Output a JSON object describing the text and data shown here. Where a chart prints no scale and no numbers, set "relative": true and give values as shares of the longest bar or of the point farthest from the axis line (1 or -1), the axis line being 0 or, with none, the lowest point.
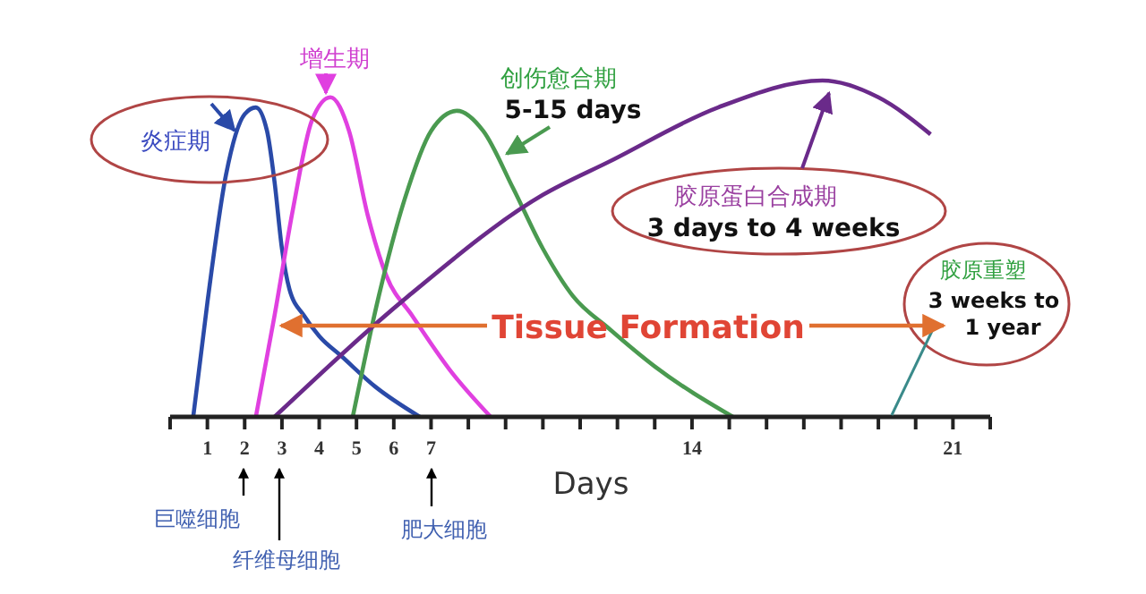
{
  "chart_data": {
    "type": "line",
    "relative": true,
    "xlabel": "Days",
    "xlim": [
      0,
      22
    ],
    "xticks": [
      {
        "value": 0,
        "label": null
      },
      1,
      2,
      3,
      4,
      5,
      6,
      7,
      {
        "value": 8,
        "label": null
      },
      {
        "value": 9,
        "label": null
      },
      {
        "value": 10,
        "label": null
      },
      {
        "value": 11,
        "label": null
      },
      {
        "value": 12,
        "label": null
      },
      {
        "value": 13,
        "label": null
      },
      14,
      {
        "value": 15,
        "label": null
      },
      {
        "value": 16,
        "label": null
      },
      {
        "value": 17,
        "label": null
      },
      {
        "value": 18,
        "label": null
      },
      {
        "value": 19,
        "label": null
      },
      {
        "value": 20,
        "label": null
      },
      21,
      {
        "value": 22,
        "label": null
      }
    ],
    "series": [
      {
        "name": "炎症期",
        "color": "#2a4aa8",
        "x": [
          0.62,
          1.0,
          1.5,
          2.0,
          2.3,
          2.6,
          2.8,
          3.0,
          3.2,
          3.6,
          4.0,
          4.6,
          5.5,
          6.7
        ],
        "values": [
          0,
          0.34,
          0.72,
          0.9,
          0.92,
          0.85,
          0.7,
          0.5,
          0.38,
          0.3,
          0.24,
          0.18,
          0.09,
          0
        ]
      },
      {
        "name": "增生期",
        "color": "#e040e0",
        "x": [
          2.3,
          2.8,
          3.3,
          3.8,
          4.3,
          4.8,
          5.3,
          5.8,
          6.5,
          7.5,
          8.6
        ],
        "values": [
          0,
          0.3,
          0.62,
          0.88,
          0.95,
          0.85,
          0.6,
          0.42,
          0.3,
          0.14,
          0
        ]
      },
      {
        "name": "创伤愈合期",
        "color": "#4a9a50",
        "x": [
          4.9,
          5.6,
          6.3,
          7.0,
          7.7,
          8.4,
          9.2,
          10.0,
          10.8,
          11.8,
          13.0,
          15.1
        ],
        "values": [
          0,
          0.36,
          0.65,
          0.85,
          0.91,
          0.85,
          0.68,
          0.5,
          0.36,
          0.26,
          0.15,
          0
        ]
      },
      {
        "name": "胶原蛋白合成期",
        "color": "#6a2a8a",
        "x": [
          2.8,
          6.4,
          10.0,
          11.8,
          14.7,
          17.5,
          19.0,
          20.4
        ],
        "values": [
          0,
          0.36,
          0.66,
          0.76,
          0.92,
          1,
          0.95,
          0.84
        ]
      }
    ],
    "annotations": [
      "5-15 days",
      "3 days to 4 weeks",
      "胶原重塑",
      "3 weeks to 1 year",
      "Tissue Formation",
      "巨噬细胞",
      "纤维母细胞",
      "肥大细胞"
    ]
  }
}
